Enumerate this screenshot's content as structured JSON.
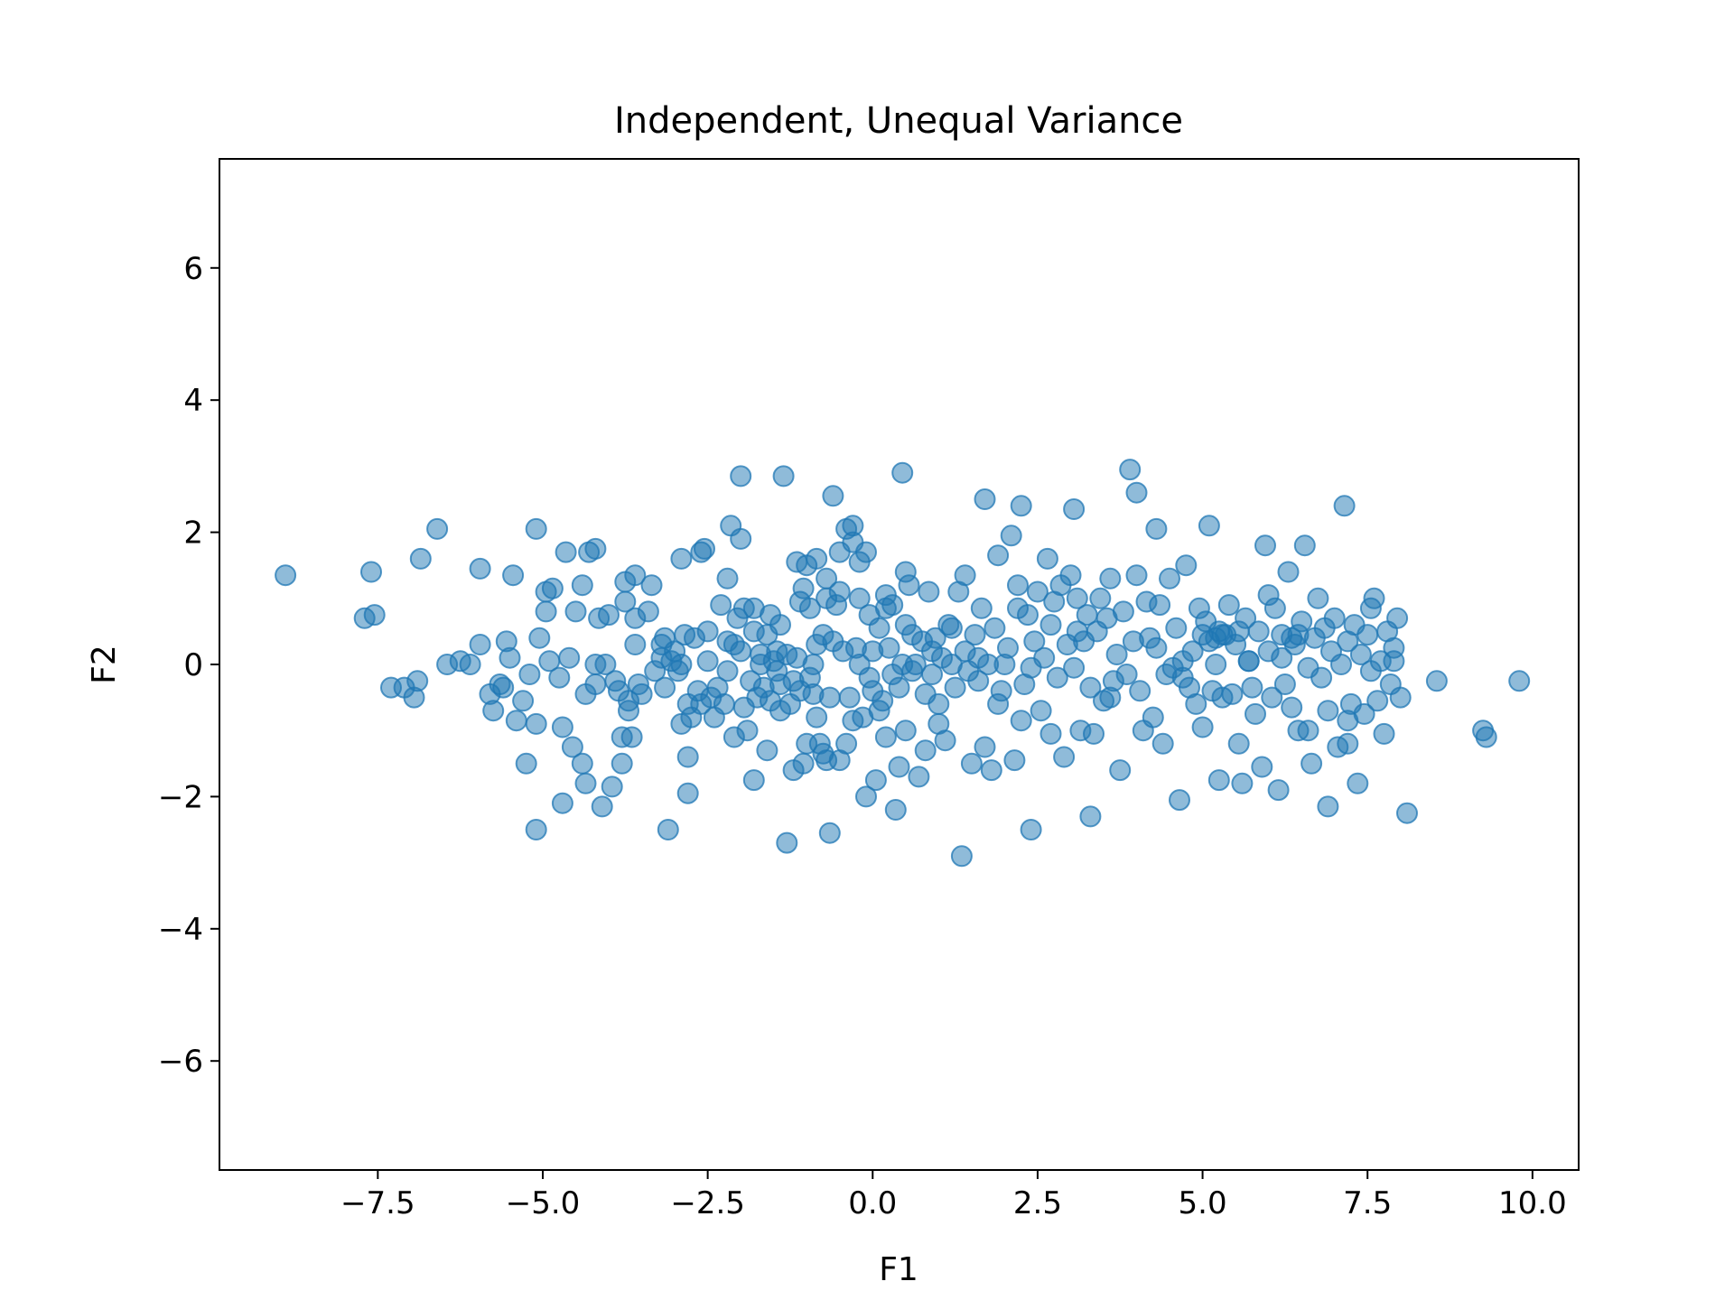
{
  "chart_data": {
    "type": "scatter",
    "title": "Independent, Unequal Variance",
    "xlabel": "F1",
    "ylabel": "F2",
    "xlim": [
      -9.9,
      10.7
    ],
    "ylim": [
      -7.65,
      7.65
    ],
    "xticks": [
      -7.5,
      -5.0,
      -2.5,
      0.0,
      2.5,
      5.0,
      7.5,
      10.0
    ],
    "xtick_labels": [
      "−7.5",
      "−5.0",
      "−2.5",
      "0.0",
      "2.5",
      "5.0",
      "7.5",
      "10.0"
    ],
    "yticks": [
      -6,
      -4,
      -2,
      0,
      2,
      4,
      6
    ],
    "ytick_labels": [
      "−6",
      "−4",
      "−2",
      "0",
      "2",
      "4",
      "6"
    ],
    "grid": false,
    "legend": "none",
    "marker_color": "#1f77b4",
    "marker_alpha": 0.5,
    "points": [
      [
        -8.9,
        1.35
      ],
      [
        -7.7,
        0.7
      ],
      [
        -7.55,
        0.75
      ],
      [
        -7.6,
        1.4
      ],
      [
        -7.3,
        -0.35
      ],
      [
        -7.1,
        -0.35
      ],
      [
        -6.95,
        -0.5
      ],
      [
        -6.9,
        -0.25
      ],
      [
        -6.85,
        1.6
      ],
      [
        -6.6,
        2.05
      ],
      [
        -6.45,
        0.0
      ],
      [
        -6.25,
        0.05
      ],
      [
        -6.1,
        0.0
      ],
      [
        -5.95,
        0.3
      ],
      [
        -5.95,
        1.45
      ],
      [
        -5.8,
        -0.45
      ],
      [
        -5.75,
        -0.7
      ],
      [
        -5.65,
        -0.3
      ],
      [
        -5.6,
        -0.35
      ],
      [
        -5.55,
        0.35
      ],
      [
        -5.5,
        0.1
      ],
      [
        -5.45,
        1.35
      ],
      [
        -5.4,
        -0.85
      ],
      [
        -5.3,
        -0.55
      ],
      [
        -5.25,
        -1.5
      ],
      [
        -5.1,
        -0.9
      ],
      [
        -5.1,
        2.05
      ],
      [
        -5.05,
        0.4
      ],
      [
        -5.1,
        -2.5
      ],
      [
        -4.95,
        0.8
      ],
      [
        -4.95,
        1.1
      ],
      [
        -4.9,
        0.05
      ],
      [
        -4.85,
        1.15
      ],
      [
        -4.75,
        -0.2
      ],
      [
        -4.7,
        -2.1
      ],
      [
        -4.7,
        -0.95
      ],
      [
        -4.65,
        1.7
      ],
      [
        -4.55,
        -1.25
      ],
      [
        -4.5,
        0.8
      ],
      [
        -4.4,
        -1.5
      ],
      [
        -4.4,
        1.2
      ],
      [
        -4.35,
        -1.8
      ],
      [
        -4.35,
        -0.45
      ],
      [
        -4.3,
        1.7
      ],
      [
        -4.2,
        1.75
      ],
      [
        -4.2,
        0.0
      ],
      [
        -4.15,
        0.7
      ],
      [
        -4.1,
        -2.15
      ],
      [
        -4.05,
        0.0
      ],
      [
        -4.0,
        0.75
      ],
      [
        -3.95,
        -1.85
      ],
      [
        -3.9,
        -0.25
      ],
      [
        -3.85,
        -0.4
      ],
      [
        -3.8,
        -1.5
      ],
      [
        -3.8,
        -1.1
      ],
      [
        -3.75,
        1.25
      ],
      [
        -3.75,
        0.95
      ],
      [
        -3.7,
        -0.55
      ],
      [
        -3.7,
        -0.7
      ],
      [
        -3.65,
        -1.1
      ],
      [
        -3.6,
        0.7
      ],
      [
        -3.6,
        1.35
      ],
      [
        -3.55,
        -0.3
      ],
      [
        -3.5,
        -0.45
      ],
      [
        -3.4,
        0.8
      ],
      [
        -3.35,
        1.2
      ],
      [
        -3.3,
        -0.1
      ],
      [
        -3.2,
        0.1
      ],
      [
        -3.15,
        0.4
      ],
      [
        -3.15,
        -0.35
      ],
      [
        -3.1,
        -2.5
      ],
      [
        -3.05,
        0.05
      ],
      [
        -3.0,
        0.2
      ],
      [
        -2.95,
        -0.1
      ],
      [
        -2.9,
        0.0
      ],
      [
        -2.9,
        1.6
      ],
      [
        -2.85,
        0.45
      ],
      [
        -2.8,
        -0.6
      ],
      [
        -2.8,
        -1.4
      ],
      [
        -2.8,
        -1.95
      ],
      [
        -2.75,
        -0.8
      ],
      [
        -2.7,
        0.4
      ],
      [
        -2.65,
        -0.4
      ],
      [
        -2.6,
        1.7
      ],
      [
        -2.55,
        1.75
      ],
      [
        -2.5,
        0.5
      ],
      [
        -2.45,
        -0.5
      ],
      [
        -2.4,
        -0.8
      ],
      [
        -2.35,
        -0.35
      ],
      [
        -2.3,
        0.9
      ],
      [
        -2.25,
        -0.6
      ],
      [
        -2.2,
        -0.1
      ],
      [
        -2.2,
        0.35
      ],
      [
        -2.15,
        2.1
      ],
      [
        -2.1,
        0.3
      ],
      [
        -2.1,
        -1.1
      ],
      [
        -2.05,
        0.7
      ],
      [
        -2.0,
        0.2
      ],
      [
        -2.0,
        1.9
      ],
      [
        -1.95,
        0.85
      ],
      [
        -1.95,
        -0.65
      ],
      [
        -1.9,
        -1.0
      ],
      [
        -1.85,
        -0.25
      ],
      [
        -1.8,
        0.85
      ],
      [
        -1.8,
        -1.75
      ],
      [
        -1.75,
        -0.5
      ],
      [
        -1.7,
        0.15
      ],
      [
        -1.7,
        0.0
      ],
      [
        -1.65,
        -0.35
      ],
      [
        -1.6,
        0.45
      ],
      [
        -1.55,
        0.75
      ],
      [
        -1.55,
        -0.55
      ],
      [
        -1.5,
        0.05
      ],
      [
        -1.45,
        -0.1
      ],
      [
        -1.45,
        0.2
      ],
      [
        -1.4,
        -0.7
      ],
      [
        -1.4,
        0.6
      ],
      [
        -1.35,
        2.85
      ],
      [
        -1.3,
        -2.7
      ],
      [
        -1.3,
        0.15
      ],
      [
        -1.25,
        -0.6
      ],
      [
        -1.2,
        -0.25
      ],
      [
        -1.2,
        -1.6
      ],
      [
        -1.15,
        0.1
      ],
      [
        -1.15,
        1.55
      ],
      [
        -1.1,
        -0.4
      ],
      [
        -1.05,
        1.15
      ],
      [
        -1.05,
        -1.5
      ],
      [
        -1.0,
        -1.2
      ],
      [
        -0.95,
        0.85
      ],
      [
        -0.95,
        -0.2
      ],
      [
        -0.9,
        0.0
      ],
      [
        -0.85,
        0.3
      ],
      [
        -0.85,
        -0.8
      ],
      [
        -0.85,
        1.6
      ],
      [
        -0.8,
        -1.2
      ],
      [
        -0.75,
        0.45
      ],
      [
        -0.75,
        -1.35
      ],
      [
        -0.7,
        1.0
      ],
      [
        -0.7,
        1.3
      ],
      [
        -0.65,
        -2.55
      ],
      [
        -0.65,
        -0.5
      ],
      [
        -0.6,
        2.55
      ],
      [
        -0.55,
        0.9
      ],
      [
        -0.5,
        -1.45
      ],
      [
        -0.5,
        1.1
      ],
      [
        -0.5,
        1.7
      ],
      [
        -0.45,
        0.2
      ],
      [
        -0.4,
        2.05
      ],
      [
        -0.4,
        -1.2
      ],
      [
        -0.35,
        -0.5
      ],
      [
        -0.3,
        1.85
      ],
      [
        -0.3,
        2.1
      ],
      [
        -0.25,
        0.25
      ],
      [
        -0.2,
        1.0
      ],
      [
        -0.15,
        -0.8
      ],
      [
        -0.1,
        1.7
      ],
      [
        -0.1,
        -2.0
      ],
      [
        -0.05,
        0.75
      ],
      [
        -0.05,
        -0.2
      ],
      [
        0.0,
        0.2
      ],
      [
        0.05,
        -1.75
      ],
      [
        0.1,
        0.55
      ],
      [
        0.1,
        -0.7
      ],
      [
        0.15,
        -0.55
      ],
      [
        0.2,
        1.05
      ],
      [
        0.2,
        -1.1
      ],
      [
        0.25,
        0.25
      ],
      [
        0.3,
        0.9
      ],
      [
        0.35,
        -2.2
      ],
      [
        0.4,
        -0.35
      ],
      [
        0.45,
        0.0
      ],
      [
        0.5,
        0.6
      ],
      [
        0.5,
        -1.0
      ],
      [
        0.55,
        1.2
      ],
      [
        0.6,
        -0.1
      ],
      [
        0.65,
        0.0
      ],
      [
        0.7,
        -1.7
      ],
      [
        0.75,
        0.35
      ],
      [
        0.8,
        -0.45
      ],
      [
        0.85,
        1.1
      ],
      [
        0.9,
        -0.15
      ],
      [
        0.95,
        0.4
      ],
      [
        1.0,
        -0.6
      ],
      [
        1.05,
        0.1
      ],
      [
        1.1,
        -1.15
      ],
      [
        1.15,
        0.6
      ],
      [
        1.2,
        0.0
      ],
      [
        1.25,
        -0.35
      ],
      [
        1.3,
        1.1
      ],
      [
        1.35,
        -2.9
      ],
      [
        1.4,
        0.2
      ],
      [
        1.45,
        -0.1
      ],
      [
        1.5,
        -1.5
      ],
      [
        1.55,
        0.45
      ],
      [
        1.6,
        -0.25
      ],
      [
        1.65,
        0.85
      ],
      [
        1.7,
        2.5
      ],
      [
        1.75,
        0.0
      ],
      [
        1.8,
        -1.6
      ],
      [
        1.85,
        0.55
      ],
      [
        1.9,
        1.65
      ],
      [
        1.95,
        -0.4
      ],
      [
        2.0,
        0.0
      ],
      [
        2.05,
        0.25
      ],
      [
        2.1,
        1.95
      ],
      [
        2.15,
        -1.45
      ],
      [
        2.2,
        1.2
      ],
      [
        2.25,
        -0.85
      ],
      [
        2.3,
        -0.3
      ],
      [
        2.35,
        0.75
      ],
      [
        2.4,
        -2.5
      ],
      [
        2.45,
        0.35
      ],
      [
        2.5,
        1.1
      ],
      [
        2.55,
        -0.7
      ],
      [
        2.6,
        0.1
      ],
      [
        2.65,
        1.6
      ],
      [
        2.7,
        -1.05
      ],
      [
        2.75,
        0.95
      ],
      [
        2.8,
        -0.2
      ],
      [
        2.85,
        1.2
      ],
      [
        2.9,
        -1.4
      ],
      [
        2.95,
        0.3
      ],
      [
        3.0,
        1.35
      ],
      [
        3.05,
        -0.05
      ],
      [
        3.1,
        1.0
      ],
      [
        3.15,
        -1.0
      ],
      [
        3.2,
        0.35
      ],
      [
        3.25,
        0.75
      ],
      [
        3.3,
        -2.3
      ],
      [
        3.35,
        -1.05
      ],
      [
        3.4,
        0.5
      ],
      [
        3.45,
        1.0
      ],
      [
        3.5,
        -0.55
      ],
      [
        3.55,
        0.7
      ],
      [
        3.6,
        1.3
      ],
      [
        3.65,
        -0.25
      ],
      [
        3.7,
        0.15
      ],
      [
        3.75,
        -1.6
      ],
      [
        3.8,
        0.8
      ],
      [
        3.85,
        -0.15
      ],
      [
        3.9,
        2.95
      ],
      [
        3.95,
        0.35
      ],
      [
        4.0,
        1.35
      ],
      [
        4.05,
        -0.4
      ],
      [
        4.1,
        -1.0
      ],
      [
        4.15,
        0.95
      ],
      [
        4.2,
        0.4
      ],
      [
        4.25,
        -0.8
      ],
      [
        4.3,
        2.05
      ],
      [
        4.35,
        0.9
      ],
      [
        4.4,
        -1.2
      ],
      [
        4.45,
        -0.15
      ],
      [
        4.5,
        1.3
      ],
      [
        4.55,
        -0.05
      ],
      [
        4.6,
        0.55
      ],
      [
        4.65,
        -2.05
      ],
      [
        4.7,
        0.05
      ],
      [
        4.75,
        1.5
      ],
      [
        4.8,
        -0.35
      ],
      [
        4.85,
        0.2
      ],
      [
        4.9,
        -0.6
      ],
      [
        4.95,
        0.85
      ],
      [
        5.0,
        -0.95
      ],
      [
        5.05,
        0.65
      ],
      [
        5.1,
        2.1
      ],
      [
        5.15,
        -0.4
      ],
      [
        5.2,
        0.0
      ],
      [
        5.25,
        -1.75
      ],
      [
        5.3,
        -0.5
      ],
      [
        5.35,
        0.45
      ],
      [
        5.4,
        0.9
      ],
      [
        5.45,
        -0.45
      ],
      [
        5.5,
        0.3
      ],
      [
        5.55,
        -1.2
      ],
      [
        5.6,
        -1.8
      ],
      [
        5.65,
        0.7
      ],
      [
        5.7,
        0.05
      ],
      [
        5.75,
        -0.35
      ],
      [
        5.8,
        -0.75
      ],
      [
        5.85,
        0.5
      ],
      [
        5.9,
        -1.55
      ],
      [
        5.95,
        1.8
      ],
      [
        6.0,
        0.2
      ],
      [
        6.05,
        -0.5
      ],
      [
        6.1,
        0.85
      ],
      [
        6.15,
        -1.9
      ],
      [
        6.2,
        0.1
      ],
      [
        6.25,
        -0.3
      ],
      [
        6.3,
        1.4
      ],
      [
        6.35,
        -0.65
      ],
      [
        6.4,
        0.3
      ],
      [
        6.45,
        -1.0
      ],
      [
        6.5,
        0.65
      ],
      [
        6.55,
        1.8
      ],
      [
        6.6,
        -0.05
      ],
      [
        6.65,
        -1.5
      ],
      [
        6.7,
        0.4
      ],
      [
        6.75,
        1.0
      ],
      [
        6.8,
        -0.2
      ],
      [
        6.85,
        0.55
      ],
      [
        6.9,
        -2.15
      ],
      [
        6.95,
        0.2
      ],
      [
        7.0,
        0.7
      ],
      [
        7.05,
        -1.25
      ],
      [
        7.1,
        0.0
      ],
      [
        7.15,
        2.4
      ],
      [
        7.2,
        0.35
      ],
      [
        7.25,
        -0.6
      ],
      [
        7.3,
        0.6
      ],
      [
        7.35,
        -1.8
      ],
      [
        7.4,
        0.15
      ],
      [
        7.45,
        -0.75
      ],
      [
        7.5,
        0.45
      ],
      [
        7.55,
        -0.1
      ],
      [
        7.6,
        1.0
      ],
      [
        7.65,
        -0.55
      ],
      [
        7.7,
        0.05
      ],
      [
        7.75,
        -1.05
      ],
      [
        7.8,
        0.5
      ],
      [
        7.85,
        -0.3
      ],
      [
        7.9,
        0.25
      ],
      [
        7.95,
        0.7
      ],
      [
        8.0,
        -0.5
      ],
      [
        -0.2,
        0.0
      ],
      [
        0.3,
        -0.15
      ],
      [
        -0.6,
        0.35
      ],
      [
        0.9,
        0.2
      ],
      [
        -1.4,
        -0.3
      ],
      [
        1.6,
        0.1
      ],
      [
        -2.5,
        0.05
      ],
      [
        2.4,
        -0.05
      ],
      [
        -3.2,
        0.3
      ],
      [
        3.3,
        -0.35
      ],
      [
        0.0,
        -0.4
      ],
      [
        0.6,
        0.45
      ],
      [
        -0.9,
        -0.45
      ],
      [
        1.2,
        0.55
      ],
      [
        -1.8,
        0.5
      ],
      [
        1.9,
        -0.6
      ],
      [
        -2.6,
        -0.6
      ],
      [
        2.7,
        0.6
      ],
      [
        0.2,
        0.85
      ],
      [
        -0.3,
        -0.85
      ],
      [
        1.0,
        -0.9
      ],
      [
        -1.1,
        0.95
      ],
      [
        0.5,
        1.4
      ],
      [
        -0.7,
        -1.45
      ],
      [
        1.4,
        1.35
      ],
      [
        -1.6,
        -1.3
      ],
      [
        0.8,
        -1.3
      ],
      [
        -0.2,
        1.55
      ],
      [
        0.4,
        -1.55
      ],
      [
        -1.0,
        1.5
      ],
      [
        1.7,
        -1.25
      ],
      [
        -2.2,
        1.3
      ],
      [
        2.2,
        0.85
      ],
      [
        -2.9,
        -0.9
      ],
      [
        3.1,
        0.5
      ],
      [
        -3.6,
        0.3
      ],
      [
        3.6,
        -0.5
      ],
      [
        -4.2,
        -0.3
      ],
      [
        4.3,
        0.25
      ],
      [
        -4.6,
        0.1
      ],
      [
        4.7,
        -0.2
      ],
      [
        -5.2,
        -0.15
      ],
      [
        5.2,
        0.4
      ],
      [
        5.3,
        0.45
      ],
      [
        5.25,
        0.5
      ],
      [
        5.1,
        0.35
      ],
      [
        5.0,
        0.45
      ],
      [
        5.55,
        0.5
      ],
      [
        5.7,
        0.05
      ],
      [
        6.0,
        1.05
      ],
      [
        6.2,
        0.45
      ],
      [
        6.35,
        0.4
      ],
      [
        6.45,
        0.45
      ],
      [
        6.6,
        -1.0
      ],
      [
        6.9,
        -0.7
      ],
      [
        7.2,
        -0.85
      ],
      [
        7.2,
        -1.2
      ],
      [
        7.55,
        0.85
      ],
      [
        7.9,
        0.05
      ],
      [
        8.1,
        -2.25
      ],
      [
        8.55,
        -0.25
      ],
      [
        9.25,
        -1.0
      ],
      [
        9.3,
        -1.1
      ],
      [
        9.8,
        -0.25
      ],
      [
        4.0,
        2.6
      ],
      [
        3.05,
        2.35
      ],
      [
        2.25,
        2.4
      ],
      [
        0.45,
        2.9
      ],
      [
        -2.0,
        2.85
      ]
    ]
  }
}
